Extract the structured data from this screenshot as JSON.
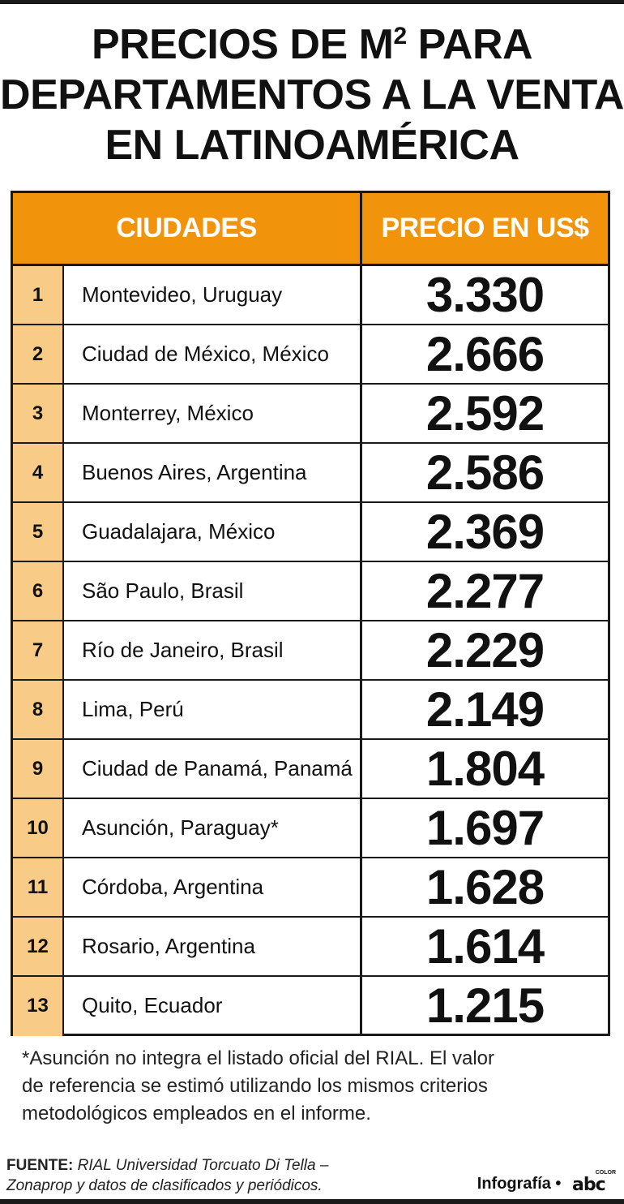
{
  "title": {
    "line1_a": "PRECIOS DE M",
    "line1_sup": "2",
    "line1_b": " PARA",
    "line2": "DEPARTAMENTOS A LA VENTA",
    "line3": "EN LATINOAMÉRICA"
  },
  "table": {
    "headers": {
      "city": "CIUDADES",
      "price": "PRECIO EN US$"
    },
    "rows": [
      {
        "rank": "1",
        "city": "Montevideo, Uruguay",
        "price": "3.330"
      },
      {
        "rank": "2",
        "city": "Ciudad de México, México",
        "price": "2.666"
      },
      {
        "rank": "3",
        "city": "Monterrey, México",
        "price": "2.592"
      },
      {
        "rank": "4",
        "city": "Buenos Aires, Argentina",
        "price": "2.586"
      },
      {
        "rank": "5",
        "city": "Guadalajara, México",
        "price": "2.369"
      },
      {
        "rank": "6",
        "city": "São Paulo, Brasil",
        "price": "2.277"
      },
      {
        "rank": "7",
        "city": "Río de Janeiro, Brasil",
        "price": "2.229"
      },
      {
        "rank": "8",
        "city": "Lima, Perú",
        "price": "2.149"
      },
      {
        "rank": "9",
        "city": "Ciudad de Panamá, Panamá",
        "price": "1.804"
      },
      {
        "rank": "10",
        "city": "Asunción, Paraguay*",
        "price": "1.697"
      },
      {
        "rank": "11",
        "city": "Córdoba, Argentina",
        "price": "1.628"
      },
      {
        "rank": "12",
        "city": "Rosario, Argentina",
        "price": "1.614"
      },
      {
        "rank": "13",
        "city": "Quito, Ecuador",
        "price": "1.215"
      }
    ]
  },
  "note": {
    "line1": "*Asunción no integra el listado oficial del RIAL. El valor",
    "line2": "de referencia se estimó utilizando los mismos criterios",
    "line3": "metodológicos empleados en el informe."
  },
  "source": {
    "label": "FUENTE:",
    "line1": " RIAL Universidad Torcuato Di Tella –",
    "line2": "Zonaprop y datos de clasificados y periódicos."
  },
  "credit": {
    "text": "Infografía •",
    "logo_main": "abc",
    "logo_sub": "COLOR"
  },
  "colors": {
    "header_orange": "#f2930c",
    "rank_cell": "#f8cb86",
    "border": "#1a1a1a"
  }
}
